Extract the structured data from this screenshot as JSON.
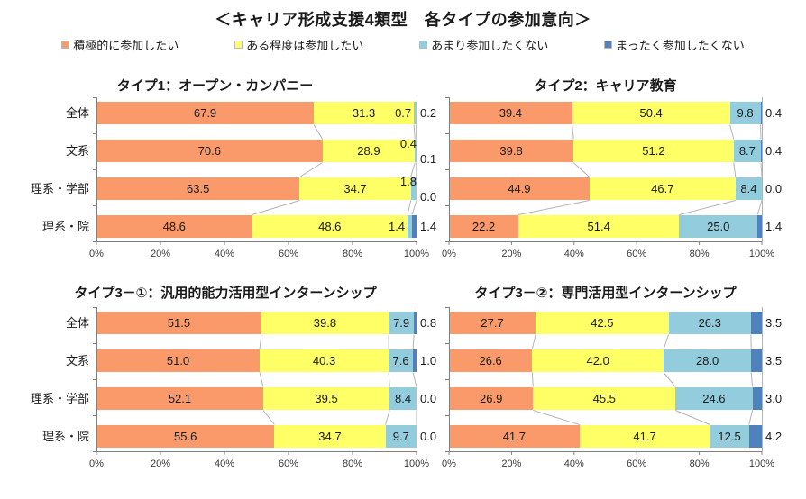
{
  "page": {
    "title": "＜キャリア形成支援4類型　各タイプの参加意向＞"
  },
  "colors": {
    "series": [
      "#FA9A6A",
      "#FFFF66",
      "#93CDDD",
      "#4F81BD"
    ],
    "connector_line": "#b3b3b3",
    "axis_line": "#808080"
  },
  "legend": {
    "items": [
      {
        "label": "積極的に参加したい",
        "color": "#FA9A6A"
      },
      {
        "label": "ある程度は参加したい",
        "color": "#FFFF66"
      },
      {
        "label": "あまり参加したくない",
        "color": "#93CDDD"
      },
      {
        "label": "まったく参加したくない",
        "color": "#4F81BD"
      }
    ]
  },
  "chart_data": [
    {
      "type": "bar",
      "orientation": "horizontal-stacked",
      "title": "タイプ1：オープン・カンパニー",
      "categories": [
        "全体",
        "文系",
        "理系・学部",
        "理系・院"
      ],
      "series": [
        {
          "name": "積極的に参加したい",
          "values": [
            67.9,
            70.6,
            63.5,
            48.6
          ]
        },
        {
          "name": "ある程度は参加したい",
          "values": [
            31.3,
            28.9,
            34.7,
            48.6
          ]
        },
        {
          "name": "あまり参加したくない",
          "values": [
            0.7,
            0.4,
            1.8,
            1.4
          ]
        },
        {
          "name": "まったく参加したくない",
          "values": [
            0.2,
            0.1,
            0.0,
            1.4
          ]
        }
      ],
      "x_ticks": [
        "0%",
        "20%",
        "40%",
        "60%",
        "80%",
        "100%"
      ],
      "xlim": [
        0,
        100
      ],
      "show_category_labels": true,
      "label_mode": [
        "inline",
        "stack",
        "stack",
        "inline"
      ],
      "legend_position": "top-shared",
      "grid": false
    },
    {
      "type": "bar",
      "orientation": "horizontal-stacked",
      "title": "タイプ2：キャリア教育",
      "categories": [
        "全体",
        "文系",
        "理系・学部",
        "理系・院"
      ],
      "series": [
        {
          "name": "積極的に参加したい",
          "values": [
            39.4,
            39.8,
            44.9,
            22.2
          ]
        },
        {
          "name": "ある程度は参加したい",
          "values": [
            50.4,
            51.2,
            46.7,
            51.4
          ]
        },
        {
          "name": "あまり参加したくない",
          "values": [
            9.8,
            8.7,
            8.4,
            25.0
          ]
        },
        {
          "name": "まったく参加したくない",
          "values": [
            0.4,
            0.4,
            0.0,
            1.4
          ]
        }
      ],
      "x_ticks": [
        "0%",
        "20%",
        "40%",
        "60%",
        "80%",
        "100%"
      ],
      "xlim": [
        0,
        100
      ],
      "show_category_labels": false,
      "label_mode": [
        "inline",
        "inline",
        "inline",
        "inline"
      ],
      "legend_position": "top-shared",
      "grid": false
    },
    {
      "type": "bar",
      "orientation": "horizontal-stacked",
      "title": "タイプ3－①：汎用的能力活用型インターンシップ",
      "categories": [
        "全体",
        "文系",
        "理系・学部",
        "理系・院"
      ],
      "series": [
        {
          "name": "積極的に参加したい",
          "values": [
            51.5,
            51.0,
            52.1,
            55.6
          ]
        },
        {
          "name": "ある程度は参加したい",
          "values": [
            39.8,
            40.3,
            39.5,
            34.7
          ]
        },
        {
          "name": "あまり参加したくない",
          "values": [
            7.9,
            7.6,
            8.4,
            9.7
          ]
        },
        {
          "name": "まったく参加したくない",
          "values": [
            0.8,
            1.0,
            0.0,
            0.0
          ]
        }
      ],
      "x_ticks": [
        "0%",
        "20%",
        "40%",
        "60%",
        "80%",
        "100%"
      ],
      "xlim": [
        0,
        100
      ],
      "show_category_labels": true,
      "label_mode": [
        "inline",
        "inline",
        "inline",
        "inline"
      ],
      "legend_position": "top-shared",
      "grid": false
    },
    {
      "type": "bar",
      "orientation": "horizontal-stacked",
      "title": "タイプ3－②：専門活用型インターンシップ",
      "categories": [
        "全体",
        "文系",
        "理系・学部",
        "理系・院"
      ],
      "series": [
        {
          "name": "積極的に参加したい",
          "values": [
            27.7,
            26.6,
            26.9,
            41.7
          ]
        },
        {
          "name": "ある程度は参加したい",
          "values": [
            42.5,
            42.0,
            45.5,
            41.7
          ]
        },
        {
          "name": "あまり参加したくない",
          "values": [
            26.3,
            28.0,
            24.6,
            12.5
          ]
        },
        {
          "name": "まったく参加したくない",
          "values": [
            3.5,
            3.5,
            3.0,
            4.2
          ]
        }
      ],
      "x_ticks": [
        "0%",
        "20%",
        "40%",
        "60%",
        "80%",
        "100%"
      ],
      "xlim": [
        0,
        100
      ],
      "show_category_labels": false,
      "label_mode": [
        "inline",
        "inline",
        "inline",
        "inline"
      ],
      "legend_position": "top-shared",
      "grid": false
    }
  ]
}
